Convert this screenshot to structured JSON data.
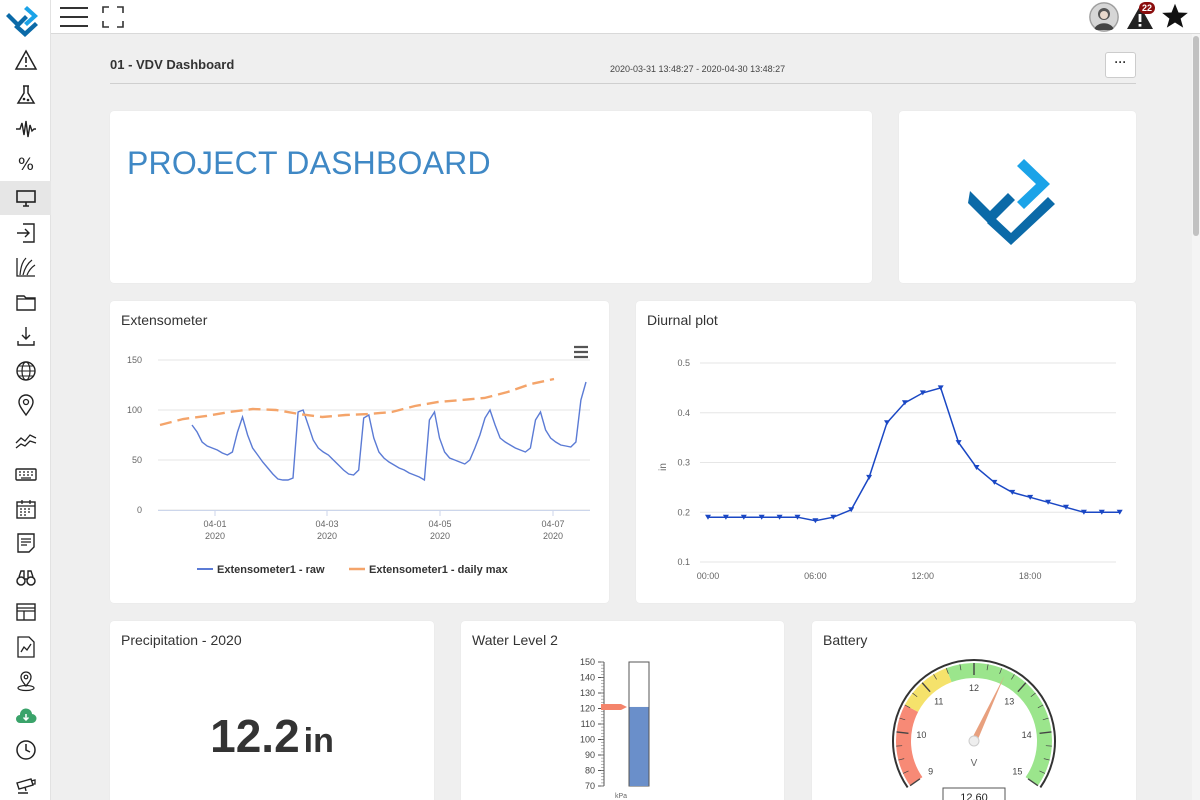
{
  "header": {
    "title": "01 - VDV Dashboard",
    "date_range": "2020-03-31 13:48:27 - 2020-04-30 13:48:27",
    "more_label": "···"
  },
  "topbar": {
    "alerts_badge": "22"
  },
  "sidebar": {
    "items": [
      {
        "icon": "alert-icon",
        "active": false
      },
      {
        "icon": "flask-icon",
        "active": false
      },
      {
        "icon": "waveform-icon",
        "active": false
      },
      {
        "icon": "percent-icon",
        "active": false
      },
      {
        "icon": "monitor-icon",
        "active": true
      },
      {
        "icon": "login-icon",
        "active": false
      },
      {
        "icon": "growth-chart-icon",
        "active": false
      },
      {
        "icon": "folder-icon",
        "active": false
      },
      {
        "icon": "download-icon",
        "active": false
      },
      {
        "icon": "globe-icon",
        "active": false
      },
      {
        "icon": "location-pin-icon",
        "active": false
      },
      {
        "icon": "trend-lines-icon",
        "active": false
      },
      {
        "icon": "keyboard-icon",
        "active": false
      },
      {
        "icon": "calendar-icon",
        "active": false
      },
      {
        "icon": "notes-icon",
        "active": false
      },
      {
        "icon": "binoculars-icon",
        "active": false
      },
      {
        "icon": "layout-icon",
        "active": false
      },
      {
        "icon": "report-chart-icon",
        "active": false
      },
      {
        "icon": "map-pin-icon",
        "active": false
      },
      {
        "icon": "cloud-download-icon",
        "active": false
      },
      {
        "icon": "clock-icon",
        "active": false
      },
      {
        "icon": "camera-icon",
        "active": false
      }
    ]
  },
  "project_card": {
    "title": "PROJECT DASHBOARD"
  },
  "colors": {
    "accent": "#3f88c5",
    "raw_series": "#5b7bd5",
    "max_series": "#f4a46a",
    "diurnal_series": "#1a47c4",
    "logo_dark": "#0b6aa8",
    "logo_light": "#1ba3e8"
  },
  "extensometer": {
    "title": "Extensometer",
    "chart_data": {
      "type": "line",
      "yticks": [
        "150",
        "100",
        "50",
        "0"
      ],
      "ylim": [
        0,
        150
      ],
      "xticks": [
        {
          "label": "04-01",
          "sub": "2020"
        },
        {
          "label": "04-03",
          "sub": "2020"
        },
        {
          "label": "04-05",
          "sub": "2020"
        },
        {
          "label": "04-07",
          "sub": "2020"
        }
      ],
      "grid": true,
      "legend_placement": "bottom",
      "series": [
        {
          "name": "Extensometer1 - raw",
          "values": [
            85,
            78,
            68,
            64,
            62,
            60,
            57,
            55,
            58,
            78,
            93,
            75,
            62,
            55,
            48,
            42,
            36,
            31,
            30,
            30,
            32,
            98,
            100,
            85,
            70,
            62,
            58,
            55,
            50,
            45,
            40,
            36,
            35,
            40,
            92,
            95,
            72,
            58,
            52,
            48,
            45,
            42,
            40,
            37,
            35,
            33,
            30,
            90,
            98,
            72,
            58,
            52,
            50,
            48,
            46,
            50,
            62,
            75,
            92,
            100,
            85,
            72,
            68,
            65,
            62,
            60,
            58,
            62,
            90,
            98,
            80,
            72,
            68,
            65,
            64,
            63,
            68,
            110,
            128
          ]
        },
        {
          "name": "Extensometer1 - daily max",
          "values": [
            85,
            91,
            94,
            98,
            101,
            100,
            96,
            93,
            95,
            96,
            98,
            104,
            108,
            110,
            112,
            118,
            126,
            131
          ]
        }
      ]
    }
  },
  "diurnal": {
    "title": "Diurnal plot",
    "chart_data": {
      "type": "line",
      "ylabel": "in",
      "yticks": [
        "0.5",
        "0.4",
        "0.3",
        "0.2",
        "0.1"
      ],
      "ylim": [
        0.1,
        0.5
      ],
      "xticks": [
        "00:00",
        "06:00",
        "12:00",
        "18:00"
      ],
      "grid": true,
      "x": [
        0,
        1,
        2,
        3,
        4,
        5,
        6,
        7,
        8,
        9,
        10,
        11,
        12,
        13,
        14,
        15,
        16,
        17,
        18,
        19,
        20,
        21,
        22,
        23
      ],
      "values": [
        0.19,
        0.19,
        0.19,
        0.19,
        0.19,
        0.19,
        0.183,
        0.19,
        0.205,
        0.27,
        0.38,
        0.42,
        0.44,
        0.45,
        0.34,
        0.29,
        0.26,
        0.24,
        0.23,
        0.22,
        0.21,
        0.2,
        0.2,
        0.2
      ]
    }
  },
  "precipitation": {
    "title": "Precipitation - 2020",
    "value": "12.2",
    "unit": "in"
  },
  "water_level": {
    "title": "Water Level 2",
    "unit": "kPa",
    "chart_data": {
      "type": "bar",
      "yticks": [
        "150",
        "140",
        "130",
        "120",
        "110",
        "100",
        "90",
        "80",
        "70"
      ],
      "ylim": [
        70,
        150
      ],
      "values": [
        121
      ]
    }
  },
  "battery": {
    "title": "Battery",
    "unit": "V",
    "value": "12.60",
    "chart_data": {
      "type": "gauge",
      "range": [
        9,
        15
      ],
      "ticks": [
        "9",
        "10",
        "11",
        "12",
        "13",
        "14",
        "15"
      ],
      "bands": [
        {
          "from": 9,
          "to": 10.5,
          "color": "#f78a76"
        },
        {
          "from": 10.5,
          "to": 11.5,
          "color": "#f5e26b"
        },
        {
          "from": 11.5,
          "to": 15,
          "color": "#9be58c"
        }
      ],
      "values": [
        12.6
      ]
    }
  }
}
